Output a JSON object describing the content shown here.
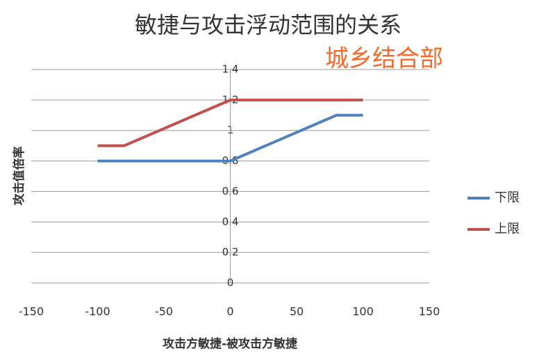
{
  "chart_data": {
    "type": "line",
    "title": "敏捷与攻击浮动范围的关系",
    "annotation": "城乡结合部",
    "xlabel": "攻击方敏捷-被攻击方敏捷",
    "ylabel": "攻击值倍率",
    "series": [
      {
        "name": "下限",
        "color": "#4f81bd",
        "x": [
          -100,
          0,
          80,
          100
        ],
        "values": [
          0.8,
          0.8,
          1.1,
          1.1
        ]
      },
      {
        "name": "上限",
        "color": "#c0504d",
        "x": [
          -100,
          -80,
          0,
          100
        ],
        "values": [
          0.9,
          0.9,
          1.2,
          1.2
        ]
      }
    ],
    "xlim": [
      -150,
      150
    ],
    "xticks": [
      -150,
      -100,
      -50,
      0,
      50,
      100,
      150
    ],
    "ylim": [
      0,
      1.4
    ],
    "yticks": [
      0,
      0.2,
      0.4,
      0.6,
      0.8,
      1,
      1.2,
      1.4
    ],
    "grid": true,
    "legend": "right"
  }
}
